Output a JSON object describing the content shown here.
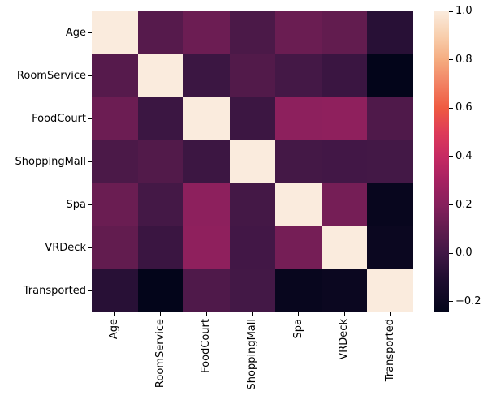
{
  "chart_data": {
    "type": "heatmap",
    "title": "",
    "xlabel": "",
    "ylabel": "",
    "categories": [
      "Age",
      "RoomService",
      "FoodCourt",
      "ShoppingMall",
      "Spa",
      "VRDeck",
      "Transported"
    ],
    "matrix": [
      [
        1.0,
        0.068,
        0.13,
        0.033,
        0.123,
        0.102,
        -0.075
      ],
      [
        0.068,
        1.0,
        -0.015,
        0.054,
        0.013,
        -0.02,
        -0.244
      ],
      [
        0.13,
        -0.015,
        1.0,
        -0.014,
        0.221,
        0.227,
        0.046
      ],
      [
        0.033,
        0.054,
        -0.014,
        1.0,
        0.013,
        0.007,
        0.01
      ],
      [
        0.123,
        0.013,
        0.221,
        0.013,
        1.0,
        0.153,
        -0.218
      ],
      [
        0.102,
        -0.02,
        0.227,
        0.007,
        0.153,
        1.0,
        -0.205
      ],
      [
        -0.075,
        -0.244,
        0.046,
        0.01,
        -0.218,
        -0.205,
        1.0
      ]
    ],
    "value_range": [
      -0.244,
      1.0
    ],
    "grid": false,
    "legend_position": "right-colorbar",
    "colorbar": {
      "tick_labels": [
        "1.0",
        "0.8",
        "0.6",
        "0.4",
        "0.2",
        "0.0",
        "−0.2"
      ],
      "tick_values": [
        1.0,
        0.8,
        0.6,
        0.4,
        0.2,
        0.0,
        -0.2
      ]
    },
    "colormap": {
      "name": "rocket",
      "stops": [
        {
          "v": -0.244,
          "c": "#03051A"
        },
        {
          "v": -0.1,
          "c": "#200D31"
        },
        {
          "v": 0.0,
          "c": "#401745"
        },
        {
          "v": 0.1,
          "c": "#611C4F"
        },
        {
          "v": 0.2,
          "c": "#86205C"
        },
        {
          "v": 0.3,
          "c": "#A62161"
        },
        {
          "v": 0.4,
          "c": "#C62A63"
        },
        {
          "v": 0.5,
          "c": "#DE3B59"
        },
        {
          "v": 0.6,
          "c": "#EF5A41"
        },
        {
          "v": 0.7,
          "c": "#F28163"
        },
        {
          "v": 0.8,
          "c": "#F5AC80"
        },
        {
          "v": 0.9,
          "c": "#F8CFAE"
        },
        {
          "v": 1.0,
          "c": "#FAEBDD"
        }
      ]
    }
  },
  "colors": {
    "background": "#ffffff",
    "text": "#000000"
  }
}
